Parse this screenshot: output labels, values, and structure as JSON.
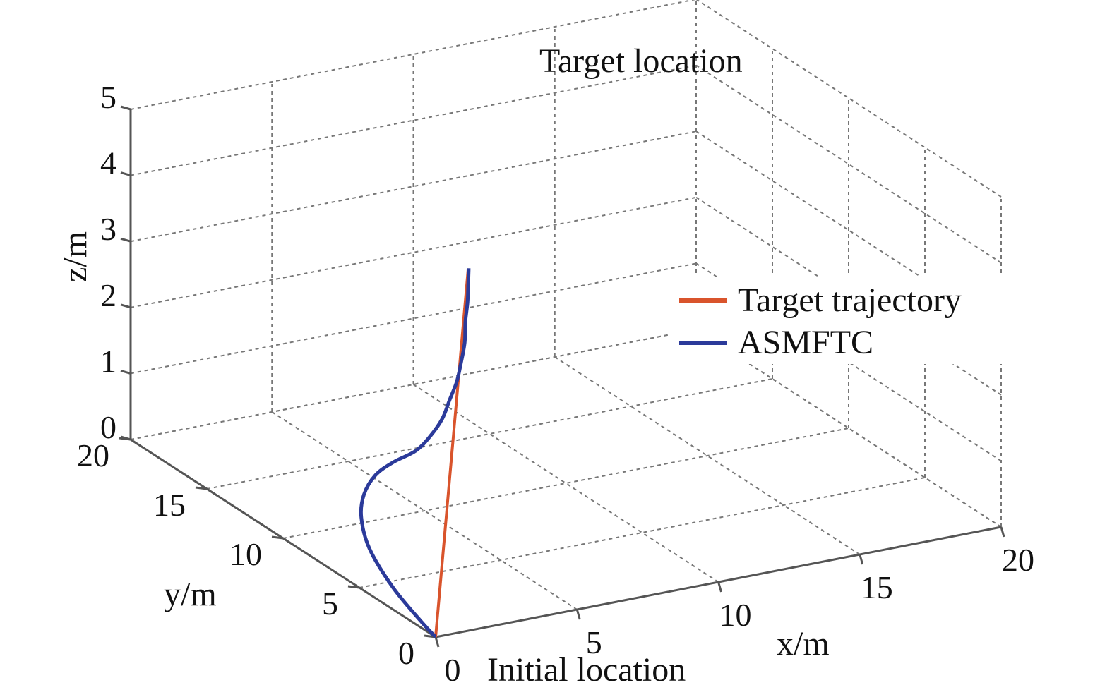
{
  "chart_data": {
    "type": "line",
    "projection": "3d",
    "xlabel": "x/m",
    "ylabel": "y/m",
    "zlabel": "z/m",
    "xlim": [
      0,
      20
    ],
    "ylim": [
      0,
      20
    ],
    "zlim": [
      0,
      5
    ],
    "xticks": [
      0,
      5,
      10,
      15,
      20
    ],
    "yticks": [
      0,
      5,
      10,
      15,
      20
    ],
    "zticks": [
      0,
      1,
      2,
      3,
      4,
      5
    ],
    "grid": true,
    "legend_position": "right",
    "annotations": {
      "start": "Initial location",
      "end": "Target location"
    },
    "series": [
      {
        "name": "Target trajectory",
        "color": "#d9542c",
        "points": [
          [
            0,
            0,
            0
          ],
          [
            2.5,
            2.5,
            5
          ]
        ]
      },
      {
        "name": "ASMFTC",
        "color": "#2b3a9a",
        "points": [
          [
            0.0,
            0.0,
            0.0
          ],
          [
            0.0,
            1.0,
            0.1
          ],
          [
            0.1,
            3.0,
            0.3
          ],
          [
            0.25,
            4.8,
            0.6
          ],
          [
            0.5,
            5.8,
            0.9
          ],
          [
            0.7,
            6.0,
            1.2
          ],
          [
            1.0,
            5.8,
            1.5
          ],
          [
            1.2,
            5.0,
            1.8
          ],
          [
            1.45,
            4.0,
            2.1
          ],
          [
            1.65,
            3.4,
            2.4
          ],
          [
            1.85,
            3.0,
            2.7
          ],
          [
            2.0,
            2.8,
            3.0
          ],
          [
            2.15,
            2.6,
            3.3
          ],
          [
            2.25,
            2.5,
            3.6
          ],
          [
            2.35,
            2.45,
            3.9
          ],
          [
            2.4,
            2.5,
            4.2
          ],
          [
            2.45,
            2.45,
            4.5
          ],
          [
            2.5,
            2.5,
            4.75
          ],
          [
            2.52,
            2.5,
            5.0
          ]
        ]
      }
    ]
  }
}
